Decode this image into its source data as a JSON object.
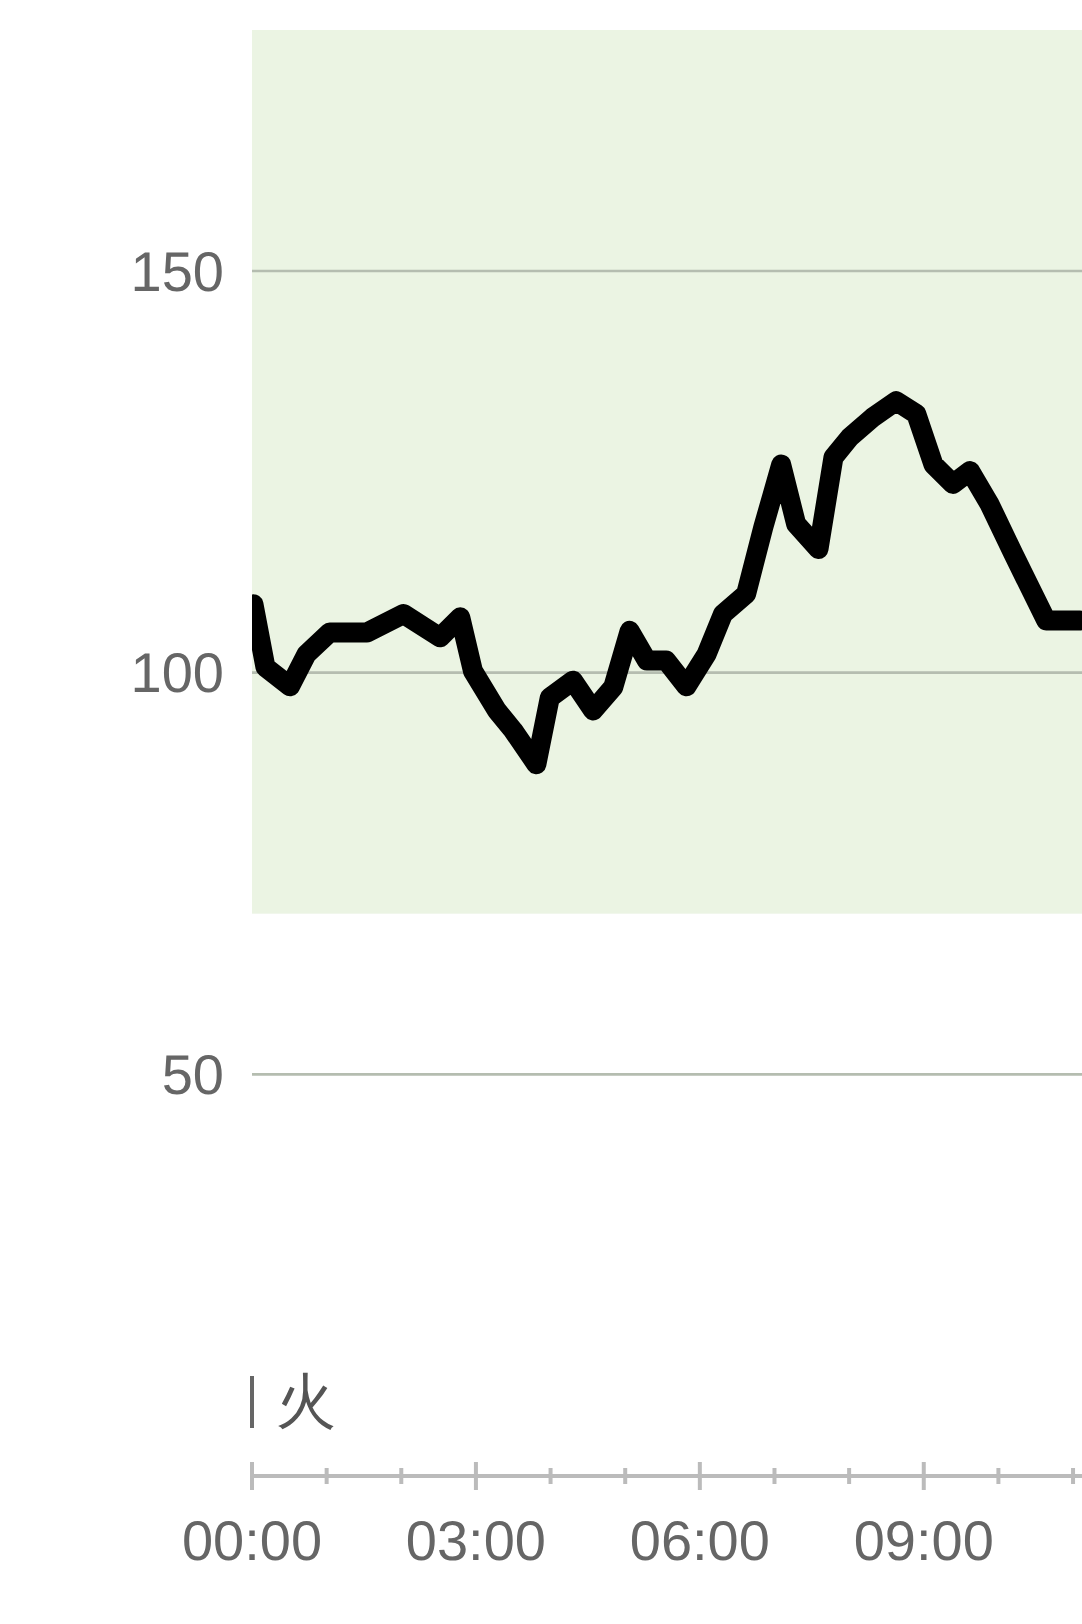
{
  "chart_data": {
    "type": "line",
    "x": [
      0.02,
      0.18,
      0.51,
      0.73,
      1.04,
      1.54,
      2.03,
      2.52,
      2.79,
      2.96,
      3.28,
      3.5,
      3.81,
      3.99,
      4.3,
      4.57,
      4.84,
      5.06,
      5.29,
      5.55,
      5.82,
      6.09,
      6.31,
      6.62,
      6.85,
      7.09,
      7.29,
      7.59,
      7.79,
      8.01,
      8.32,
      8.63,
      8.9,
      9.13,
      9.39,
      9.62,
      9.88,
      10.2,
      10.64,
      11.09
    ],
    "series": [
      {
        "color": "#000000",
        "values": [
          108.5,
          100.7,
          98.3,
          102.3,
          105,
          105,
          107.3,
          104.4,
          106.9,
          100.2,
          95.3,
          92.8,
          88.6,
          96.9,
          99,
          95.3,
          98.2,
          105.2,
          101.5,
          101.5,
          98.3,
          102.3,
          107.3,
          109.8,
          118.1,
          125.9,
          118.5,
          115.4,
          126.8,
          129.3,
          131.8,
          133.8,
          132.2,
          125.9,
          123.5,
          125.1,
          121,
          114.8,
          106.5,
          106.5
        ]
      }
    ],
    "xlim": [
      0,
      11.12
    ],
    "ylim": [
      0,
      180
    ],
    "xticks": [
      {
        "value": 0,
        "label": "00:00"
      },
      {
        "value": 1,
        "label": null
      },
      {
        "value": 2,
        "label": null
      },
      {
        "value": 3,
        "label": "03:00"
      },
      {
        "value": 4,
        "label": null
      },
      {
        "value": 5,
        "label": null
      },
      {
        "value": 6,
        "label": "06:00"
      },
      {
        "value": 7,
        "label": null
      },
      {
        "value": 8,
        "label": null
      },
      {
        "value": 9,
        "label": "09:00"
      },
      {
        "value": 10,
        "label": null
      },
      {
        "value": 11,
        "label": null
      }
    ],
    "yticks": [
      50,
      100,
      150
    ],
    "grid": "y",
    "bands": [
      {
        "axis": "y",
        "from": 70,
        "to": 180,
        "color": "#ebf4e3"
      }
    ],
    "annotations": [
      "火"
    ],
    "line_style": "solid",
    "marker": "none"
  }
}
